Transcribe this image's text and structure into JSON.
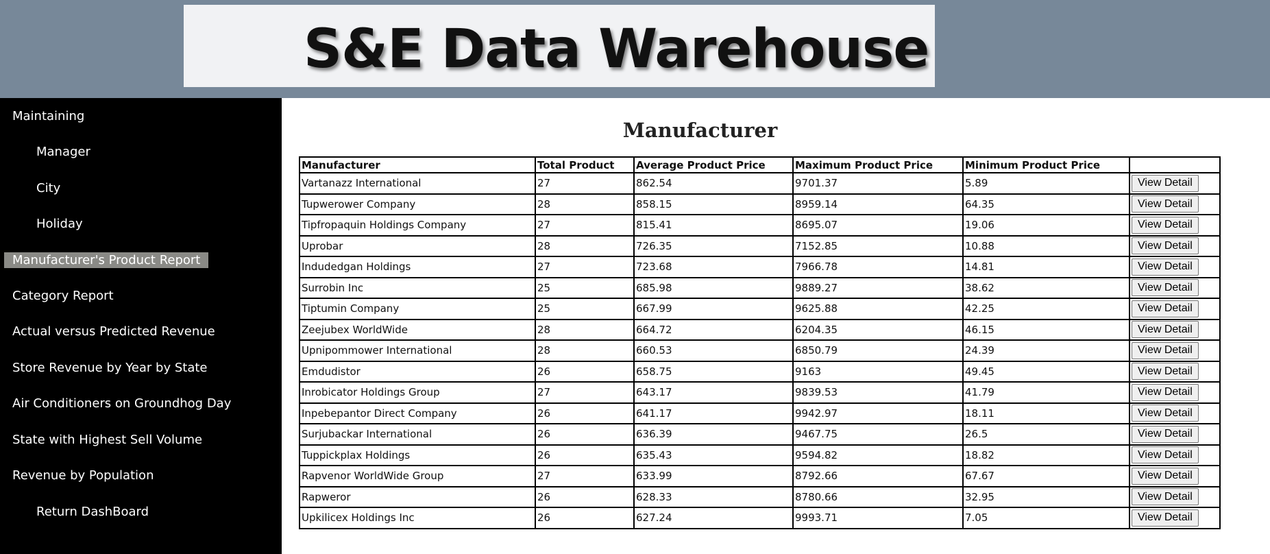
{
  "header": {
    "title": "S&E Data Warehouse"
  },
  "sidebar": {
    "items": [
      {
        "label": "Maintaining"
      },
      {
        "label": "Manager"
      },
      {
        "label": "City"
      },
      {
        "label": "Holiday"
      },
      {
        "label": "Manufacturer's Product Report"
      },
      {
        "label": "Category Report"
      },
      {
        "label": "Actual versus Predicted Revenue"
      },
      {
        "label": "Store Revenue by Year by State"
      },
      {
        "label": "Air Conditioners on Groundhog Day"
      },
      {
        "label": "State with Highest Sell Volume"
      },
      {
        "label": "Revenue by Population"
      },
      {
        "label": "Return DashBoard"
      }
    ],
    "active": "Manufacturer's Product Report"
  },
  "main": {
    "title": "Manufacturer",
    "table": {
      "headers": [
        "Manufacturer",
        "Total Product",
        "Average Product Price",
        "Maximum Product Price",
        "Minimum Product Price",
        ""
      ],
      "button_label": "View Detail",
      "rows": [
        [
          "Vartanazz International",
          "27",
          "862.54",
          "9701.37",
          "5.89"
        ],
        [
          "Tupwerower Company",
          "28",
          "858.15",
          "8959.14",
          "64.35"
        ],
        [
          "Tipfropaquin Holdings Company",
          "27",
          "815.41",
          "8695.07",
          "19.06"
        ],
        [
          "Uprobar",
          "28",
          "726.35",
          "7152.85",
          "10.88"
        ],
        [
          "Indudedgan Holdings",
          "27",
          "723.68",
          "7966.78",
          "14.81"
        ],
        [
          "Surrobin Inc",
          "25",
          "685.98",
          "9889.27",
          "38.62"
        ],
        [
          "Tiptumin Company",
          "25",
          "667.99",
          "9625.88",
          "42.25"
        ],
        [
          "Zeejubex WorldWide",
          "28",
          "664.72",
          "6204.35",
          "46.15"
        ],
        [
          "Upnipommower International",
          "28",
          "660.53",
          "6850.79",
          "24.39"
        ],
        [
          "Emdudistor",
          "26",
          "658.75",
          "9163",
          "49.45"
        ],
        [
          "Inrobicator Holdings Group",
          "27",
          "643.17",
          "9839.53",
          "41.79"
        ],
        [
          "Inpebepantor Direct Company",
          "26",
          "641.17",
          "9942.97",
          "18.11"
        ],
        [
          "Surjubackar International",
          "26",
          "636.39",
          "9467.75",
          "26.5"
        ],
        [
          "Tuppickplax Holdings",
          "26",
          "635.43",
          "9594.82",
          "18.82"
        ],
        [
          "Rapvenor WorldWide Group",
          "27",
          "633.99",
          "8792.66",
          "67.67"
        ],
        [
          "Rapweror",
          "26",
          "628.33",
          "8780.66",
          "32.95"
        ],
        [
          "Upkilicex Holdings Inc",
          "26",
          "627.24",
          "9993.71",
          "7.05"
        ]
      ]
    }
  },
  "colors": {
    "header_bg": "#778899",
    "banner_bg": "#f1f2f4",
    "sidebar_bg": "#000000",
    "active_item_bg": "#8a8a86"
  }
}
